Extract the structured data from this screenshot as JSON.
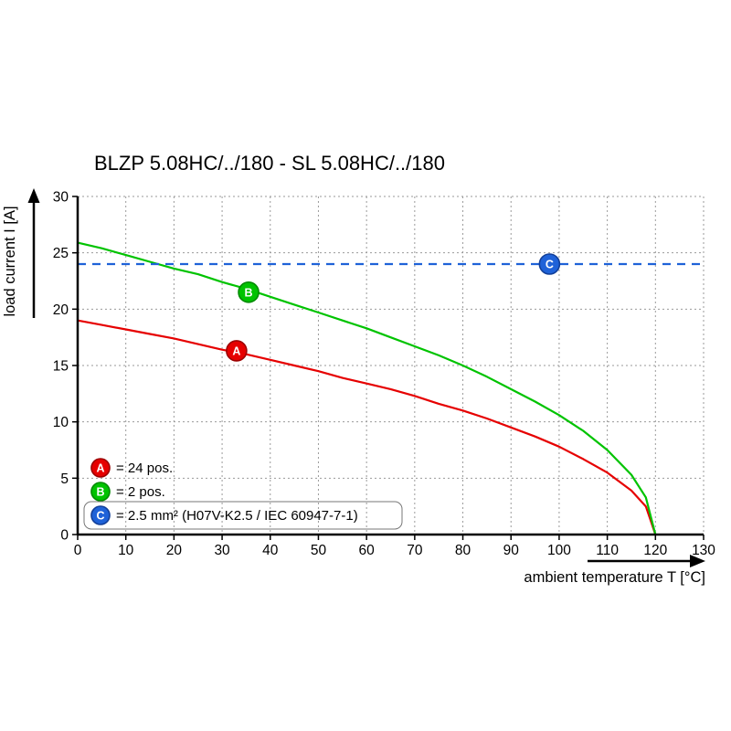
{
  "chart_data": {
    "type": "line",
    "title": "BLZP 5.08HC/../180 - SL 5.08HC/../180",
    "xlabel": "ambient temperature T [°C]",
    "ylabel": "load current I [A]",
    "xlim": [
      0,
      130
    ],
    "ylim": [
      0,
      30
    ],
    "xticks": [
      0,
      10,
      20,
      30,
      40,
      50,
      60,
      70,
      80,
      90,
      100,
      110,
      120,
      130
    ],
    "yticks": [
      0,
      5,
      10,
      15,
      20,
      25,
      30
    ],
    "grid": true,
    "legend_position": "inside-bottom-left",
    "series": [
      {
        "id": "A",
        "legend_label": "= 24 pos.",
        "color": "#e60000",
        "edge_color": "#9c0000",
        "line_style": "solid",
        "marker": {
          "x": 33,
          "y": 16.3
        },
        "x": [
          0,
          5,
          10,
          15,
          20,
          25,
          30,
          35,
          40,
          45,
          50,
          55,
          60,
          65,
          70,
          75,
          80,
          85,
          90,
          95,
          100,
          105,
          110,
          115,
          118,
          120
        ],
        "y": [
          19.0,
          18.6,
          18.2,
          17.8,
          17.4,
          16.9,
          16.4,
          16.0,
          15.5,
          15.0,
          14.5,
          13.9,
          13.4,
          12.9,
          12.3,
          11.6,
          11.0,
          10.3,
          9.5,
          8.7,
          7.8,
          6.7,
          5.5,
          3.9,
          2.5,
          0
        ]
      },
      {
        "id": "B",
        "legend_label": "= 2 pos.",
        "color": "#00c300",
        "edge_color": "#008a00",
        "line_style": "solid",
        "marker": {
          "x": 35.5,
          "y": 21.5
        },
        "x": [
          0,
          5,
          10,
          15,
          20,
          25,
          30,
          35,
          40,
          45,
          50,
          55,
          60,
          65,
          70,
          75,
          80,
          85,
          90,
          95,
          100,
          105,
          110,
          115,
          118,
          120
        ],
        "y": [
          25.9,
          25.4,
          24.8,
          24.2,
          23.6,
          23.1,
          22.4,
          21.8,
          21.1,
          20.4,
          19.7,
          19.0,
          18.3,
          17.5,
          16.7,
          15.9,
          15.0,
          14.0,
          12.9,
          11.8,
          10.6,
          9.2,
          7.5,
          5.3,
          3.3,
          0
        ]
      },
      {
        "id": "C",
        "legend_label": "= 2.5 mm² (H07V-K2.5 / IEC 60947-7-1)",
        "color": "#1f62d8",
        "edge_color": "#123f99",
        "line_style": "dashed",
        "marker": {
          "x": 98,
          "y": 24
        },
        "x": [
          0,
          130
        ],
        "y": [
          24,
          24
        ]
      }
    ]
  }
}
